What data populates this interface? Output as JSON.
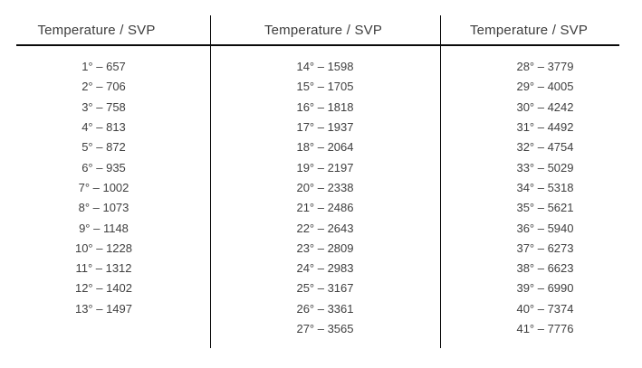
{
  "table": {
    "header_label": "Temperature / SVP",
    "columns": [
      {
        "rows": [
          "1° – 657",
          "2° – 706",
          "3° – 758",
          "4° – 813",
          "5° – 872",
          "6° – 935",
          "7° – 1002",
          "8° – 1073",
          "9° – 1148",
          "10° – 1228",
          "11° – 1312",
          "12° – 1402",
          "13° – 1497"
        ]
      },
      {
        "rows": [
          "14° – 1598",
          "15° – 1705",
          "16° – 1818",
          "17° – 1937",
          "18° – 2064",
          "19° – 2197",
          "20° – 2338",
          "21° – 2486",
          "22° – 2643",
          "23° – 2809",
          "24° – 2983",
          "25° – 3167",
          "26° – 3361",
          "27° – 3565"
        ]
      },
      {
        "rows": [
          "28° – 3779",
          "29° – 4005",
          "30° – 4242",
          "31° – 4492",
          "32° – 4754",
          "33° – 5029",
          "34° – 5318",
          "35° – 5621",
          "36° – 5940",
          "37° – 6273",
          "38° – 6623",
          "39° – 6990",
          "40° – 7374",
          "41° – 7776"
        ]
      }
    ]
  },
  "colors": {
    "text": "#404040",
    "line": "#0a0a0a",
    "background": "#ffffff"
  }
}
